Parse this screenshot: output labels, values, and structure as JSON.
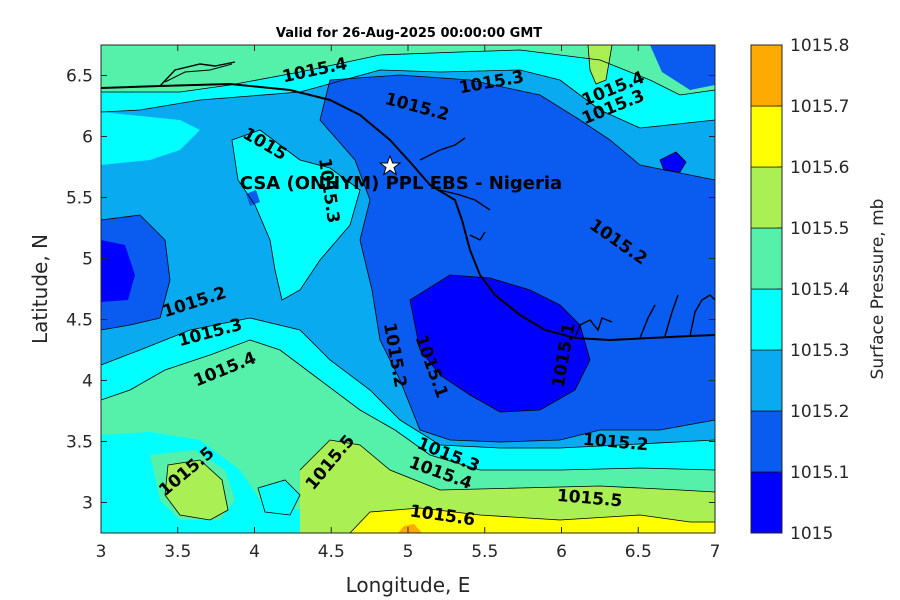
{
  "title": "Valid for 26-Aug-2025 00:00:00 GMT",
  "colors": {
    "levels": [
      "#0000ff",
      "#0a5cf0",
      "#0aaaf0",
      "#00ffff",
      "#55f0aa",
      "#aaf055",
      "#ffff00",
      "#ffaa00",
      "#ff5500"
    ],
    "contour_line": "#000000",
    "coastline": "#000000"
  },
  "chart_data": {
    "type": "contour-map",
    "title": "Valid for 26-Aug-2025 00:00:00 GMT",
    "xlabel": "Longitude, E",
    "ylabel": "Latitude, N",
    "xlim": [
      3,
      7
    ],
    "ylim": [
      2.75,
      6.75
    ],
    "xticks": [
      "3",
      "3.5",
      "4",
      "4.5",
      "5",
      "5.5",
      "6",
      "6.5",
      "7"
    ],
    "yticks": [
      "3",
      "3.5",
      "4",
      "4.5",
      "5",
      "5.5",
      "6",
      "6.5"
    ],
    "colorbar": {
      "label": "Surface Pressure, mb",
      "ticks": [
        "1015",
        "1015.1",
        "1015.2",
        "1015.3",
        "1015.4",
        "1015.5",
        "1015.6",
        "1015.7",
        "1015.8"
      ],
      "range": [
        1015,
        1015.8
      ]
    },
    "station": {
      "label": "CSA (ONHYM) PPL EBS - Nigeria",
      "lon": 4.88,
      "lat": 5.76,
      "marker": "star"
    },
    "contour_labels": [
      {
        "text": "1015.4",
        "lon": 4.4,
        "lat": 6.5
      },
      {
        "text": "1015.3",
        "lon": 5.55,
        "lat": 6.4
      },
      {
        "text": "1015.2",
        "lon": 5.05,
        "lat": 6.2
      },
      {
        "text": "1015.4",
        "lon": 6.35,
        "lat": 6.35
      },
      {
        "text": "1015.3",
        "lon": 6.35,
        "lat": 6.2
      },
      {
        "text": "1015",
        "lon": 4.05,
        "lat": 5.9
      },
      {
        "text": "1015.3",
        "lon": 4.45,
        "lat": 5.55
      },
      {
        "text": "1015.2",
        "lon": 6.35,
        "lat": 5.1
      },
      {
        "text": "1015.2",
        "lon": 3.62,
        "lat": 4.6
      },
      {
        "text": "1015.3",
        "lon": 3.72,
        "lat": 4.35
      },
      {
        "text": "1015.4",
        "lon": 3.82,
        "lat": 4.05
      },
      {
        "text": "1015.2",
        "lon": 4.88,
        "lat": 4.2
      },
      {
        "text": "1015.1",
        "lon": 5.12,
        "lat": 4.1
      },
      {
        "text": "1015.1",
        "lon": 6.05,
        "lat": 4.2
      },
      {
        "text": "1015.2",
        "lon": 6.35,
        "lat": 3.45
      },
      {
        "text": "1015.3",
        "lon": 5.25,
        "lat": 3.35
      },
      {
        "text": "1015.4",
        "lon": 5.2,
        "lat": 3.2
      },
      {
        "text": "1015.5",
        "lon": 3.58,
        "lat": 3.22
      },
      {
        "text": "1015.5",
        "lon": 4.52,
        "lat": 3.3
      },
      {
        "text": "1015.5",
        "lon": 6.18,
        "lat": 2.99
      },
      {
        "text": "1015.6",
        "lon": 5.22,
        "lat": 2.85
      }
    ]
  }
}
